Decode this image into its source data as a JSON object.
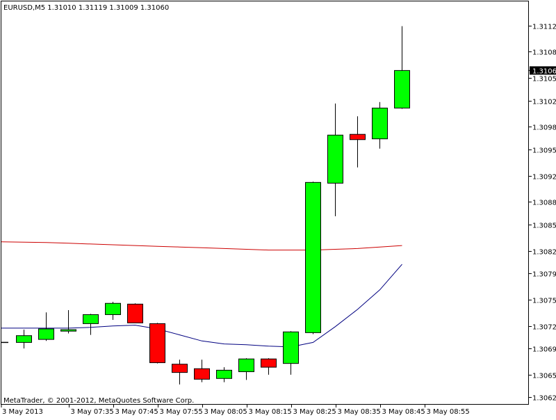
{
  "header": {
    "text": "EURUSD,M5  1.31010 1.31119 1.31009 1.31060"
  },
  "footer": {
    "copyright": "MetaTrader, © 2001-2012, MetaQuotes Software Corp."
  },
  "price_tag": "1.31060",
  "colors": {
    "background": "#ffffff",
    "bull": "#00ff00",
    "bear": "#ff0000",
    "outline": "#000000",
    "ma_slow": "#cc0000",
    "ma_fast": "#000080",
    "tag_bg": "#000000",
    "tag_text": "#ffffff"
  },
  "chart_data": {
    "type": "candlestick",
    "symbol": "EURUSD",
    "timeframe": "M5",
    "ylim": [
      1.30616,
      1.31152
    ],
    "y_ticks": [
      "1.31120",
      "1.31085",
      "1.31050",
      "1.31020",
      "1.30985",
      "1.30955",
      "1.30920",
      "1.30885",
      "1.30855",
      "1.30820",
      "1.30790",
      "1.30755",
      "1.30720",
      "1.30690",
      "1.30655",
      "1.30625"
    ],
    "x_ticks": [
      "3 May 2013",
      "3 May 07:35",
      "3 May 07:45",
      "3 May 07:55",
      "3 May 08:05",
      "3 May 08:15",
      "3 May 08:25",
      "3 May 08:35",
      "3 May 08:45",
      "3 May 08:55"
    ],
    "candles": [
      {
        "open": 1.30698,
        "high": 1.30715,
        "low": 1.3069,
        "close": 1.30707
      },
      {
        "open": 1.30702,
        "high": 1.30738,
        "low": 1.307,
        "close": 1.30716
      },
      {
        "open": 1.30713,
        "high": 1.30741,
        "low": 1.3071,
        "close": 1.30715
      },
      {
        "open": 1.30723,
        "high": 1.30736,
        "low": 1.30708,
        "close": 1.30735
      },
      {
        "open": 1.30735,
        "high": 1.30752,
        "low": 1.30728,
        "close": 1.3075
      },
      {
        "open": 1.30749,
        "high": 1.3075,
        "low": 1.30724,
        "close": 1.30724
      },
      {
        "open": 1.30723,
        "high": 1.30724,
        "low": 1.3067,
        "close": 1.30671
      },
      {
        "open": 1.30669,
        "high": 1.30675,
        "low": 1.30642,
        "close": 1.30658
      },
      {
        "open": 1.30663,
        "high": 1.30675,
        "low": 1.30645,
        "close": 1.30649
      },
      {
        "open": 1.3065,
        "high": 1.30665,
        "low": 1.30645,
        "close": 1.30661
      },
      {
        "open": 1.30659,
        "high": 1.30677,
        "low": 1.30648,
        "close": 1.30676
      },
      {
        "open": 1.30676,
        "high": 1.30677,
        "low": 1.30655,
        "close": 1.30665
      },
      {
        "open": 1.3067,
        "high": 1.30713,
        "low": 1.30655,
        "close": 1.30712
      },
      {
        "open": 1.30711,
        "high": 1.30912,
        "low": 1.30709,
        "close": 1.30911
      },
      {
        "open": 1.3091,
        "high": 1.31016,
        "low": 1.30866,
        "close": 1.30974
      },
      {
        "open": 1.30975,
        "high": 1.30999,
        "low": 1.30931,
        "close": 1.30968
      },
      {
        "open": 1.30969,
        "high": 1.31018,
        "low": 1.30956,
        "close": 1.3101
      },
      {
        "open": 1.3101,
        "high": 1.31119,
        "low": 1.31009,
        "close": 1.3106
      }
    ],
    "ma_slow": [
      1.30832,
      1.30831,
      1.3083,
      1.30829,
      1.30828,
      1.30827,
      1.30826,
      1.30825,
      1.30824,
      1.30823,
      1.30822,
      1.30821,
      1.30821,
      1.30821,
      1.30822,
      1.30823,
      1.30825,
      1.30827
    ],
    "ma_fast": [
      1.30717,
      1.30717,
      1.30717,
      1.30718,
      1.3072,
      1.30721,
      1.30716,
      1.30708,
      1.307,
      1.30696,
      1.30695,
      1.30693,
      1.30692,
      1.30698,
      1.30719,
      1.30742,
      1.30768,
      1.30802
    ]
  }
}
